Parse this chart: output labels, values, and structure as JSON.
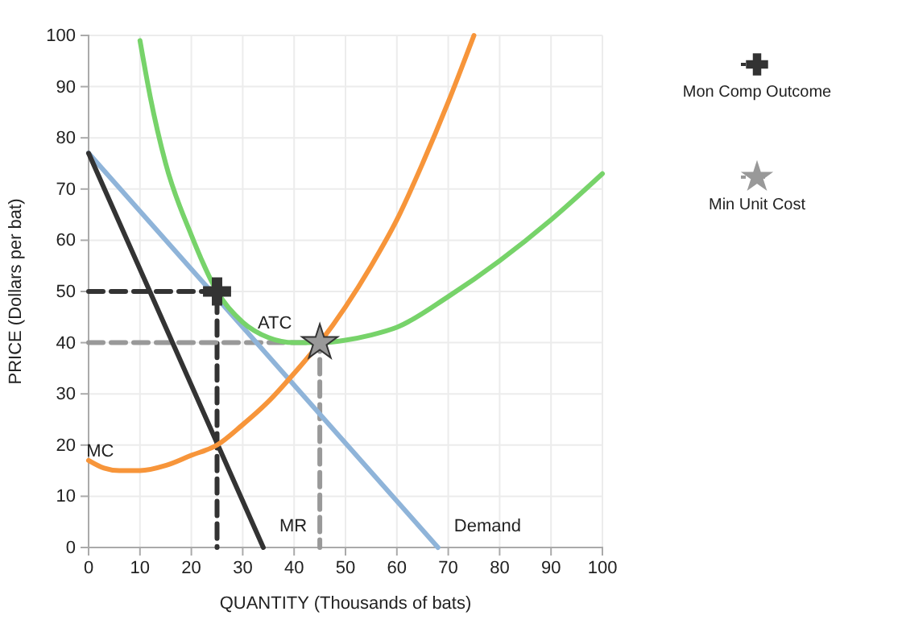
{
  "chart_data": {
    "type": "line",
    "xlabel": "QUANTITY (Thousands of bats)",
    "ylabel": "PRICE (Dollars per bat)",
    "xlim": [
      0,
      100
    ],
    "ylim": [
      0,
      100
    ],
    "xticks": [
      0,
      10,
      20,
      30,
      40,
      50,
      60,
      70,
      80,
      90,
      100
    ],
    "yticks": [
      0,
      10,
      20,
      30,
      40,
      50,
      60,
      70,
      80,
      90,
      100
    ],
    "grid": true,
    "legend": "top right",
    "line_style": "solid",
    "series": [
      {
        "color": "#333333",
        "line_style": "dashed",
        "x": [
          0,
          25,
          25
        ],
        "values": [
          50,
          50,
          0
        ]
      },
      {
        "color": "#999999",
        "line_style": "dashed",
        "x": [
          0,
          45,
          45
        ],
        "values": [
          40,
          40,
          0
        ]
      },
      {
        "name": "Demand",
        "color": "#8fb4d9",
        "x": [
          0,
          68
        ],
        "values": [
          77,
          0
        ]
      },
      {
        "name": "MR",
        "color": "#333333",
        "x": [
          0,
          34
        ],
        "values": [
          77,
          0
        ]
      },
      {
        "name": "MC",
        "color": "#f7953a",
        "x": [
          0,
          3,
          6,
          10,
          15,
          20,
          25,
          30,
          35,
          40,
          45,
          50,
          55,
          60,
          65,
          70,
          75
        ],
        "values": [
          17,
          15.5,
          15,
          15,
          16,
          18,
          20,
          24,
          28.5,
          34,
          40,
          47,
          55,
          64,
          75,
          87,
          100
        ]
      },
      {
        "name": "ATC",
        "color": "#77d36a",
        "x": [
          10,
          12,
          15,
          20,
          25,
          30,
          35,
          40,
          45,
          50,
          55,
          60,
          70,
          80,
          90,
          100
        ],
        "values": [
          99,
          88,
          75,
          61,
          50,
          44,
          41,
          40,
          40,
          40.5,
          41.5,
          43,
          49,
          56,
          64,
          73
        ]
      },
      {
        "name": "Mon Comp Outcome",
        "type": "scatter",
        "marker": "cross",
        "color": "#333333",
        "x": [
          25
        ],
        "values": [
          50
        ]
      },
      {
        "name": "Min Unit Cost",
        "type": "scatter",
        "marker": "star",
        "color": "#999999",
        "x": [
          45
        ],
        "values": [
          40
        ]
      }
    ]
  }
}
